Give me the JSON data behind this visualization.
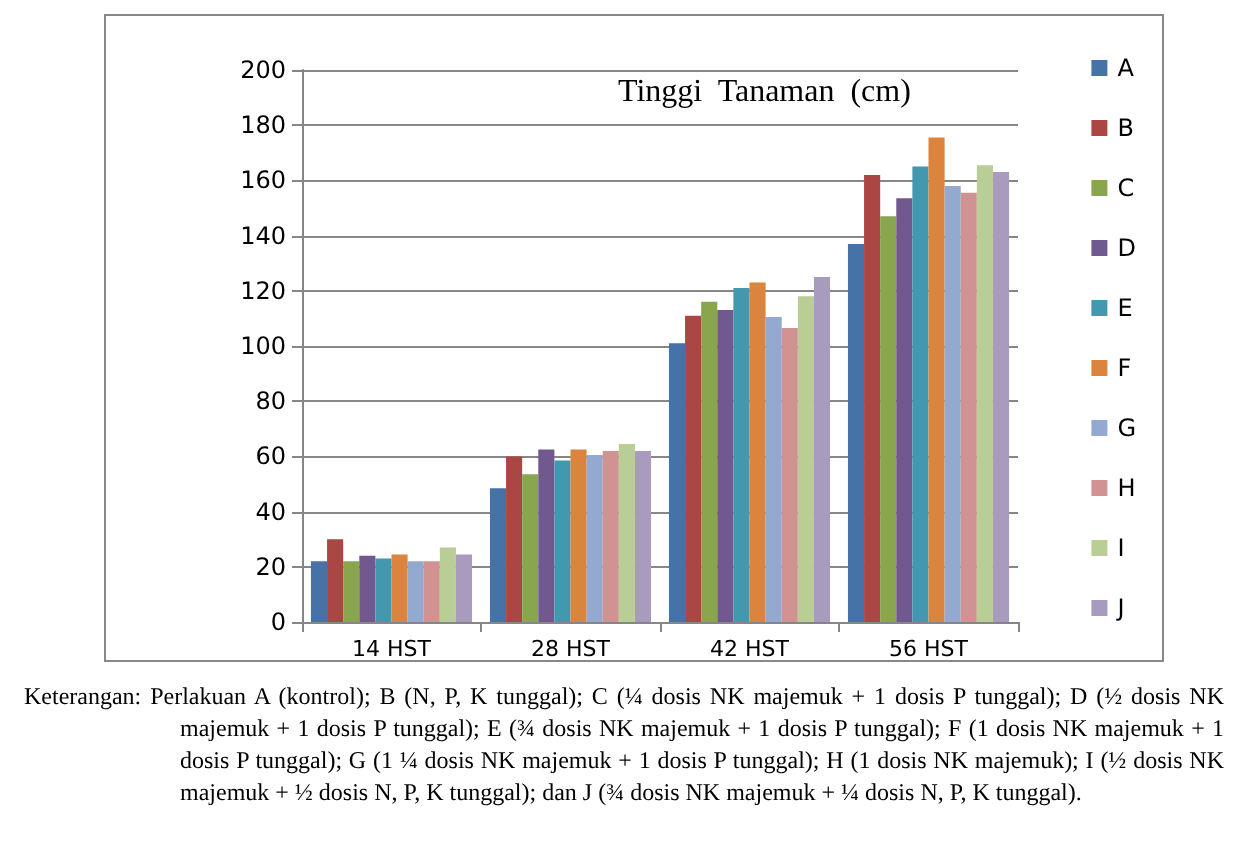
{
  "chart_data": {
    "type": "bar",
    "title": "Tinggi  Tanaman  (cm)",
    "categories": [
      "14 HST",
      "28 HST",
      "42 HST",
      "56 HST"
    ],
    "series": [
      {
        "name": "A",
        "color": "#4572a7",
        "values": [
          22,
          48.5,
          101,
          137
        ]
      },
      {
        "name": "B",
        "color": "#aa4643",
        "values": [
          30,
          60,
          111,
          162
        ]
      },
      {
        "name": "C",
        "color": "#89a54e",
        "values": [
          22,
          53.5,
          116,
          147
        ]
      },
      {
        "name": "D",
        "color": "#71588f",
        "values": [
          24,
          62.5,
          113,
          153.5
        ]
      },
      {
        "name": "E",
        "color": "#4198af",
        "values": [
          23,
          58.5,
          121,
          165
        ]
      },
      {
        "name": "F",
        "color": "#db843d",
        "values": [
          24.5,
          62.5,
          123,
          175.5
        ]
      },
      {
        "name": "G",
        "color": "#93a9cf",
        "values": [
          22,
          60.5,
          110.5,
          158
        ]
      },
      {
        "name": "H",
        "color": "#d19392",
        "values": [
          22,
          62,
          106.5,
          155.5
        ]
      },
      {
        "name": "I",
        "color": "#b9cd96",
        "values": [
          27,
          64.5,
          118,
          165.5
        ]
      },
      {
        "name": "J",
        "color": "#a99bbd",
        "values": [
          24.5,
          62,
          125,
          163
        ]
      }
    ],
    "ylim": [
      0,
      200
    ],
    "yticks": [
      0,
      20,
      40,
      60,
      80,
      100,
      120,
      140,
      160,
      180,
      200
    ],
    "grid": "y",
    "legend": "right",
    "annotations": [
      "Keterangan: Perlakuan A (kontrol); B (N, P, K tunggal); C (¼ dosis NK majemuk + 1 dosis P tunggal); D (½ dosis NK majemuk + 1 dosis P tunggal); E (¾ dosis NK majemuk + 1 dosis P tunggal); F (1 dosis NK majemuk + 1 dosis P tunggal); G (1 ¼ dosis NK majemuk + 1 dosis P tunggal); H (1 dosis NK majemuk); I (½ dosis NK majemuk + ½ dosis N, P, K tunggal); dan J (¾ dosis NK majemuk + ¼ dosis N, P, K tunggal)."
    ]
  }
}
